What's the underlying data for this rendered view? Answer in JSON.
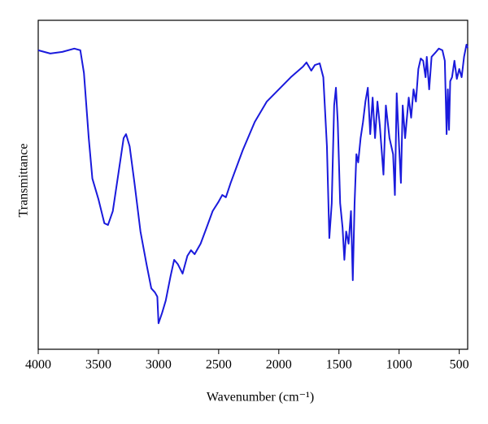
{
  "chart_data": {
    "type": "line",
    "xlabel": "Wavenumber (cm⁻¹)",
    "ylabel": "Transmittance",
    "xlim": [
      4000,
      430
    ],
    "ylim": [
      0,
      100
    ],
    "xticks": [
      4000,
      3500,
      3000,
      2500,
      2000,
      1500,
      1000,
      500
    ],
    "series": [
      {
        "color": "#1a1adc",
        "x": [
          4000,
          3900,
          3800,
          3700,
          3650,
          3620,
          3580,
          3550,
          3500,
          3450,
          3420,
          3380,
          3330,
          3290,
          3270,
          3240,
          3200,
          3150,
          3100,
          3060,
          3030,
          3010,
          3000,
          2970,
          2940,
          2900,
          2870,
          2840,
          2800,
          2760,
          2730,
          2700,
          2650,
          2600,
          2550,
          2500,
          2470,
          2440,
          2400,
          2300,
          2200,
          2100,
          2000,
          1900,
          1800,
          1770,
          1730,
          1700,
          1660,
          1630,
          1600,
          1580,
          1560,
          1540,
          1525,
          1510,
          1490,
          1470,
          1455,
          1440,
          1420,
          1400,
          1385,
          1370,
          1355,
          1340,
          1320,
          1300,
          1280,
          1260,
          1240,
          1220,
          1200,
          1180,
          1160,
          1130,
          1110,
          1080,
          1050,
          1035,
          1020,
          1000,
          985,
          970,
          950,
          920,
          900,
          880,
          860,
          840,
          820,
          800,
          780,
          770,
          750,
          730,
          700,
          670,
          640,
          620,
          605,
          595,
          585,
          575,
          560,
          540,
          520,
          500,
          480,
          460,
          440,
          430
        ],
        "values": [
          90.9,
          89.9,
          90.4,
          91.4,
          90.9,
          84,
          64.2,
          51.9,
          45.7,
          38.3,
          37.8,
          42,
          54.3,
          64.2,
          65.4,
          61.7,
          50.6,
          35.8,
          25.9,
          18.5,
          17.3,
          16,
          7.9,
          11.1,
          14.8,
          22.2,
          27.2,
          25.9,
          23,
          28.4,
          30.1,
          28.9,
          32.1,
          37,
          42,
          44.9,
          46.9,
          46.2,
          50.6,
          60.5,
          69.1,
          75.3,
          79,
          82.7,
          85.9,
          87.2,
          84.7,
          86.4,
          86.9,
          82.7,
          61.7,
          33.8,
          44.4,
          74.1,
          79.5,
          69.1,
          44.4,
          37,
          27.2,
          35.8,
          32.1,
          42,
          21,
          44.4,
          59.3,
          56.8,
          64.2,
          69.1,
          75.3,
          79.5,
          65.4,
          76.5,
          64.2,
          75.3,
          67.9,
          53.1,
          74.1,
          64.2,
          59.3,
          46.9,
          77.8,
          61.7,
          50.6,
          74.1,
          64.2,
          76.5,
          70.4,
          79,
          75.3,
          85.2,
          88.4,
          87.7,
          82.7,
          88.9,
          79,
          88.9,
          90.1,
          91.4,
          90.9,
          87.7,
          65.4,
          79,
          66.7,
          81.5,
          82.7,
          87.7,
          82.2,
          85.2,
          82.7,
          88.9,
          92.6,
          91.6
        ]
      }
    ]
  }
}
